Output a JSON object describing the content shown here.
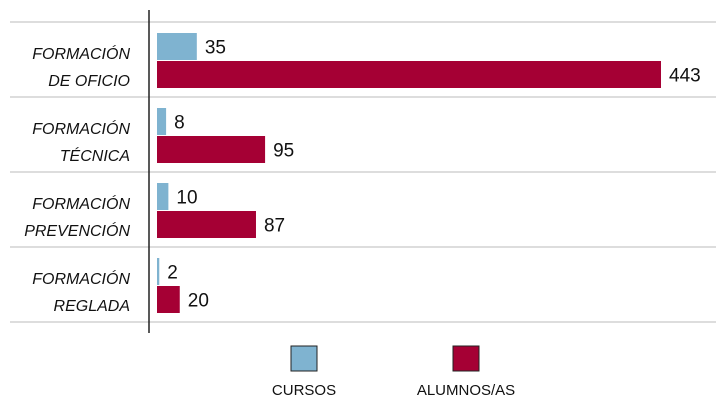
{
  "chart_data": {
    "type": "bar",
    "orientation": "horizontal",
    "categories": [
      "FORMACIÓN\nDE OFICIO",
      "FORMACIÓN\nTÉCNICA",
      "FORMACIÓN\nPREVENCIÓN",
      "FORMACIÓN\nREGLADA"
    ],
    "series": [
      {
        "name": "CURSOS",
        "color": "#7fb3d0",
        "values": [
          35,
          8,
          10,
          2
        ]
      },
      {
        "name": "ALUMNOS/AS",
        "color": "#a50034",
        "values": [
          443,
          95,
          87,
          20
        ]
      }
    ],
    "xlim": [
      0,
      443
    ]
  }
}
